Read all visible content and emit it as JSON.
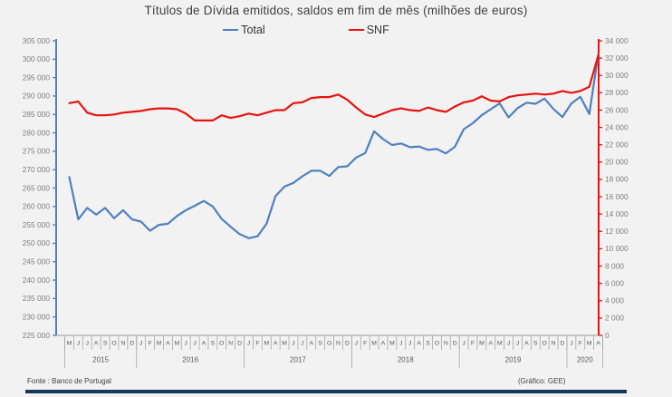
{
  "title": "Títulos de Dívida emitidos, saldos em fim de mês  (milhões de euros)",
  "footer": {
    "source": "Fonte : Banco de  Portugal",
    "credit": "(Gráfico: GEE)"
  },
  "chart_data": {
    "type": "line",
    "title": "Títulos de Dívida emitidos, saldos em fim de mês (milhões de euros)",
    "legend_position": "top-center",
    "grid": false,
    "left_axis": {
      "min": 225000,
      "max": 305000,
      "step": 5000,
      "color": "#4f81bd"
    },
    "right_axis": {
      "min": 0,
      "max": 34000,
      "step": 2000,
      "color": "#e8130f"
    },
    "categories": [
      "M",
      "J",
      "J",
      "A",
      "S",
      "O",
      "N",
      "D",
      "J",
      "F",
      "M",
      "A",
      "M",
      "J",
      "J",
      "A",
      "S",
      "O",
      "N",
      "D",
      "J",
      "F",
      "M",
      "A",
      "M",
      "J",
      "J",
      "A",
      "S",
      "O",
      "N",
      "D",
      "J",
      "F",
      "M",
      "A",
      "M",
      "J",
      "J",
      "A",
      "S",
      "O",
      "N",
      "D",
      "J",
      "F",
      "M",
      "A",
      "M",
      "J",
      "J",
      "A",
      "S",
      "O",
      "N",
      "D",
      "J",
      "F",
      "M",
      "A"
    ],
    "year_groups": [
      {
        "label": "2015",
        "months": 8
      },
      {
        "label": "2016",
        "months": 12
      },
      {
        "label": "2017",
        "months": 12
      },
      {
        "label": "2018",
        "months": 12
      },
      {
        "label": "2019",
        "months": 12
      },
      {
        "label": "2020",
        "months": 4
      }
    ],
    "series": [
      {
        "name": "Total",
        "axis": "left",
        "color": "#4f81bd",
        "values": [
          268000,
          256500,
          259600,
          257800,
          259600,
          256800,
          259000,
          256500,
          255900,
          253400,
          255000,
          255300,
          257400,
          259000,
          260200,
          261500,
          260000,
          256600,
          254500,
          252500,
          251400,
          251900,
          255300,
          262800,
          265400,
          266400,
          268200,
          269700,
          269700,
          268300,
          270700,
          270900,
          273300,
          274500,
          280400,
          278300,
          276700,
          277100,
          276100,
          276300,
          275400,
          275600,
          274400,
          276200,
          281000,
          282600,
          284800,
          286400,
          288000,
          284200,
          286700,
          288200,
          287900,
          289300,
          286500,
          284300,
          288000,
          289800,
          285100,
          301300
        ]
      },
      {
        "name": "SNF",
        "axis": "right",
        "color": "#e8130f",
        "values": [
          26800,
          27000,
          25700,
          25400,
          25400,
          25500,
          25700,
          25800,
          25900,
          26100,
          26200,
          26200,
          26100,
          25600,
          24800,
          24800,
          24800,
          25400,
          25100,
          25300,
          25600,
          25400,
          25700,
          26000,
          26000,
          26800,
          26900,
          27400,
          27500,
          27500,
          27800,
          27200,
          26300,
          25500,
          25200,
          25600,
          26000,
          26200,
          26000,
          25900,
          26300,
          26000,
          25800,
          26400,
          26900,
          27100,
          27600,
          27100,
          27000,
          27500,
          27700,
          27800,
          27900,
          27800,
          27900,
          28200,
          28000,
          28200,
          28700,
          32300
        ]
      }
    ]
  },
  "legend": {
    "total_label": "Total",
    "snf_label": "SNF"
  }
}
